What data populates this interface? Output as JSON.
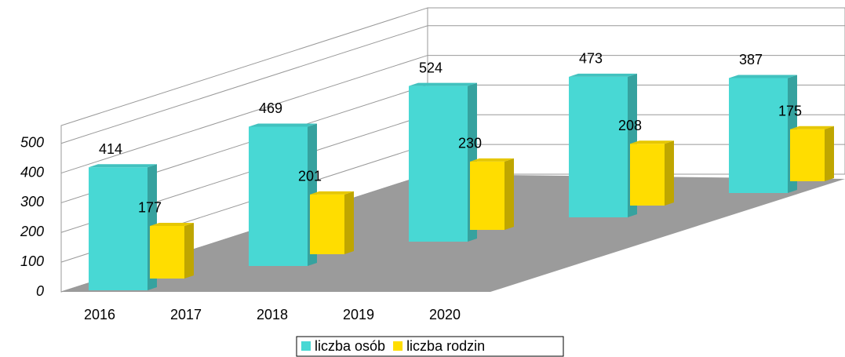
{
  "chart_data": {
    "type": "bar3d",
    "categories": [
      "2016",
      "2017",
      "2018",
      "2019",
      "2020"
    ],
    "series": [
      {
        "name": "liczba osób",
        "color": "#48d8d4",
        "values": [
          414,
          469,
          524,
          473,
          387
        ]
      },
      {
        "name": "liczba rodzin",
        "color": "#ffdd00",
        "values": [
          177,
          201,
          230,
          208,
          175
        ]
      }
    ],
    "ylim": [
      0,
      560
    ],
    "yticks": [
      0,
      100,
      200,
      300,
      400,
      500
    ],
    "grid": true
  }
}
